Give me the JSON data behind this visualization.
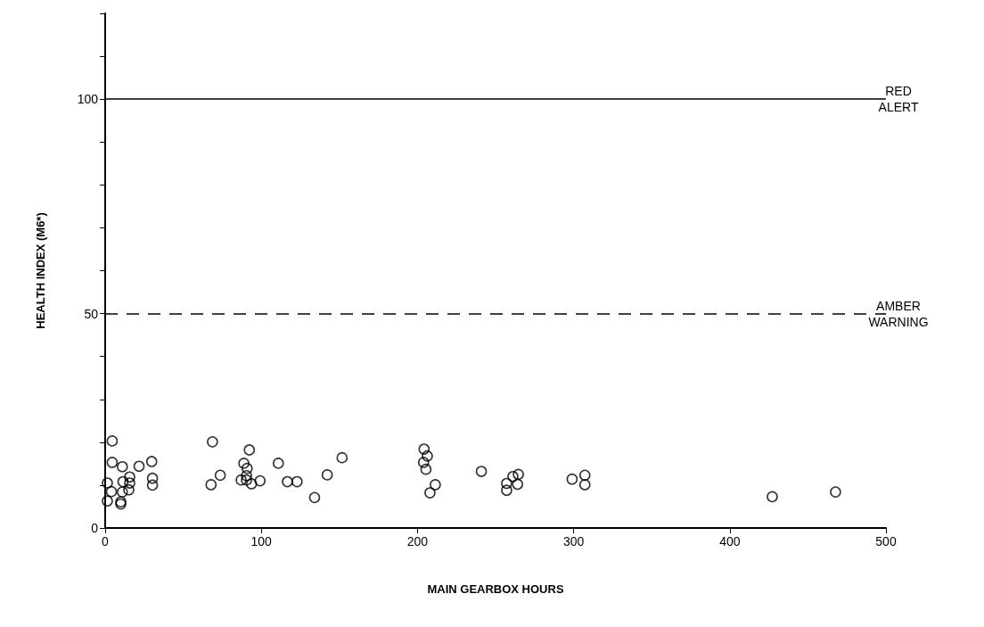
{
  "chart_data": {
    "type": "scatter",
    "xlabel": "MAIN GEARBOX HOURS",
    "ylabel": "HEALTH INDEX (M6*)",
    "x": [
      4.5,
      4.5,
      1.4,
      4,
      1.4,
      11,
      11.4,
      15.7,
      15.7,
      11,
      15.1,
      10,
      10,
      21.7,
      29.8,
      30.3,
      30.3,
      68.7,
      67.8,
      73.7,
      92.3,
      88.8,
      90.9,
      90.5,
      87.1,
      90.5,
      93.7,
      99.2,
      110.9,
      116.7,
      122.9,
      134.1,
      142.2,
      151.7,
      204.2,
      206.3,
      203.9,
      205.4,
      211.4,
      208,
      240.9,
      261.1,
      264.6,
      257.1,
      257.1,
      264.1,
      299,
      307.2,
      307.2,
      427.2,
      467.7
    ],
    "series": [
      {
        "color": "#000000",
        "values": [
          20.3,
          15.3,
          10.5,
          8.5,
          6.3,
          14.3,
          10.8,
          11.9,
          10.5,
          8.4,
          8.9,
          5.6,
          6.1,
          14.4,
          15.5,
          11.6,
          10,
          20.1,
          10.1,
          12.3,
          18.2,
          15.1,
          13.9,
          12.2,
          11.2,
          11.2,
          10.3,
          11,
          15.1,
          10.8,
          10.8,
          7.1,
          12.4,
          16.4,
          18.4,
          16.8,
          15.3,
          13.7,
          10.1,
          8.2,
          13.2,
          12,
          12.5,
          10.4,
          8.8,
          10.2,
          11.4,
          12.3,
          10.1,
          7.3,
          8.4
        ]
      }
    ],
    "xlim": [
      0,
      500
    ],
    "xticks": [
      0,
      100,
      200,
      300,
      400,
      500
    ],
    "ylim": [
      0,
      120
    ],
    "yticks": [
      0,
      {
        "value": 10,
        "label": null
      },
      {
        "value": 20,
        "label": null
      },
      {
        "value": 30,
        "label": null
      },
      {
        "value": 40,
        "label": null
      },
      50,
      {
        "value": 60,
        "label": null
      },
      {
        "value": 70,
        "label": null
      },
      {
        "value": 80,
        "label": null
      },
      {
        "value": 90,
        "label": null
      },
      100,
      {
        "value": 110,
        "label": null
      },
      {
        "value": 120,
        "label": null
      }
    ],
    "ref_lines": [
      {
        "axis": "y",
        "value": 100,
        "label": "RED\nALERT",
        "color": "#000000",
        "line_style": "solid"
      },
      {
        "axis": "y",
        "value": 50,
        "label": "AMBER\nWARNING",
        "color": "#000000",
        "line_style": "dashed"
      }
    ],
    "marker": "circle",
    "grid": false
  }
}
